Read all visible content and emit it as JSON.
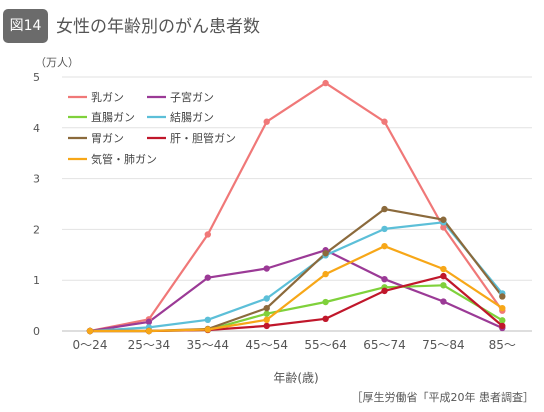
{
  "header": {
    "figure_label": "図14",
    "title": "女性の年齢別のがん患者数"
  },
  "source": "［厚生労働省「平成20年 患者調査］",
  "chart_data": {
    "type": "line",
    "title": "女性の年齢別のがん患者数",
    "unit_label": "（万人）",
    "xlabel": "年齢(歳)",
    "ylabel": "",
    "ylim": [
      0,
      5
    ],
    "yticks": [
      0,
      1,
      2,
      3,
      4,
      5
    ],
    "grid": true,
    "legend_position": "top-left",
    "categories": [
      "0〜24",
      "25〜34",
      "35〜44",
      "45〜54",
      "55〜64",
      "65〜74",
      "75〜84",
      "85〜"
    ],
    "series": [
      {
        "name": "乳ガン",
        "color": "#f07878",
        "values": [
          0.0,
          0.23,
          1.9,
          4.12,
          4.88,
          4.12,
          2.04,
          0.4
        ]
      },
      {
        "name": "子宮ガン",
        "color": "#9b3a96",
        "values": [
          0.0,
          0.18,
          1.05,
          1.23,
          1.59,
          1.02,
          0.58,
          0.06
        ]
      },
      {
        "name": "直腸ガン",
        "color": "#7fd13b",
        "values": [
          0.0,
          0.0,
          0.02,
          0.34,
          0.57,
          0.86,
          0.9,
          0.21
        ]
      },
      {
        "name": "結腸ガン",
        "color": "#5cbfd8",
        "values": [
          0.0,
          0.07,
          0.22,
          0.64,
          1.49,
          2.01,
          2.14,
          0.74
        ]
      },
      {
        "name": "胃ガン",
        "color": "#8b6a3c",
        "values": [
          0.0,
          0.0,
          0.04,
          0.45,
          1.53,
          2.4,
          2.19,
          0.68
        ]
      },
      {
        "name": "肝・胆管ガン",
        "color": "#c0172b",
        "values": [
          0.0,
          0.0,
          0.02,
          0.1,
          0.24,
          0.79,
          1.08,
          0.1
        ]
      },
      {
        "name": "気管・肺ガン",
        "color": "#f7a718",
        "values": [
          0.0,
          0.0,
          0.03,
          0.22,
          1.12,
          1.67,
          1.22,
          0.45
        ]
      }
    ]
  }
}
